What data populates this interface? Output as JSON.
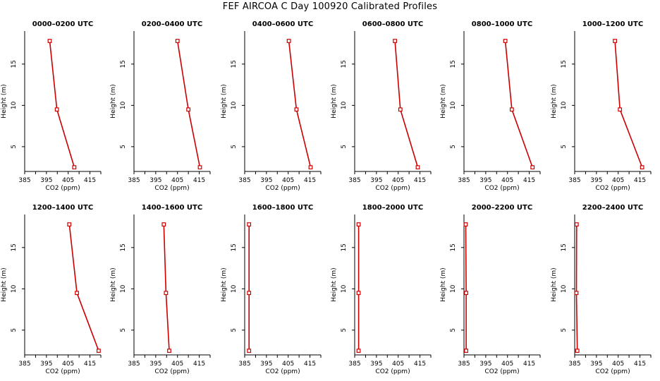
{
  "page": {
    "title": "FEF AIRCOA C  Day 100920  Calibrated Profiles"
  },
  "style": {
    "line_color": "#cc0000",
    "axis_color": "#000000",
    "background": "#ffffff"
  },
  "chart_data": [
    {
      "type": "line",
      "title": "0000–0200 UTC",
      "xlabel": "CO2 (ppm)",
      "ylabel": "Height (m)",
      "xlim": [
        385,
        420
      ],
      "ylim": [
        2,
        19
      ],
      "xticks": [
        385,
        395,
        405,
        415
      ],
      "yticks": [
        5,
        10,
        15
      ],
      "series": [
        {
          "x": [
            396.5,
            399.8,
            407.8
          ],
          "y": [
            17.8,
            9.5,
            2.5
          ]
        }
      ]
    },
    {
      "type": "line",
      "title": "0200–0400 UTC",
      "xlabel": "CO2 (ppm)",
      "ylabel": "Height (m)",
      "xlim": [
        385,
        420
      ],
      "ylim": [
        2,
        19
      ],
      "xticks": [
        385,
        395,
        405,
        415
      ],
      "yticks": [
        5,
        10,
        15
      ],
      "series": [
        {
          "x": [
            405.0,
            410.0,
            415.3
          ],
          "y": [
            17.8,
            9.5,
            2.5
          ]
        }
      ]
    },
    {
      "type": "line",
      "title": "0400–0600 UTC",
      "xlabel": "CO2 (ppm)",
      "ylabel": "Height (m)",
      "xlim": [
        385,
        420
      ],
      "ylim": [
        2,
        19
      ],
      "xticks": [
        385,
        395,
        405,
        415
      ],
      "yticks": [
        5,
        10,
        15
      ],
      "series": [
        {
          "x": [
            405.3,
            408.8,
            415.3
          ],
          "y": [
            17.8,
            9.5,
            2.5
          ]
        }
      ]
    },
    {
      "type": "line",
      "title": "0600–0800 UTC",
      "xlabel": "CO2 (ppm)",
      "ylabel": "Height (m)",
      "xlim": [
        385,
        420
      ],
      "ylim": [
        2,
        19
      ],
      "xticks": [
        385,
        395,
        405,
        415
      ],
      "yticks": [
        5,
        10,
        15
      ],
      "series": [
        {
          "x": [
            403.5,
            406.0,
            414.0
          ],
          "y": [
            17.8,
            9.5,
            2.5
          ]
        }
      ]
    },
    {
      "type": "line",
      "title": "0800–1000 UTC",
      "xlabel": "CO2 (ppm)",
      "ylabel": "Height (m)",
      "xlim": [
        385,
        420
      ],
      "ylim": [
        2,
        19
      ],
      "xticks": [
        385,
        395,
        405,
        415
      ],
      "yticks": [
        5,
        10,
        15
      ],
      "series": [
        {
          "x": [
            404.0,
            407.0,
            416.5
          ],
          "y": [
            17.8,
            9.5,
            2.5
          ]
        }
      ]
    },
    {
      "type": "line",
      "title": "1000–1200 UTC",
      "xlabel": "CO2 (ppm)",
      "ylabel": "Height (m)",
      "xlim": [
        385,
        420
      ],
      "ylim": [
        2,
        19
      ],
      "xticks": [
        385,
        395,
        405,
        415
      ],
      "yticks": [
        5,
        10,
        15
      ],
      "series": [
        {
          "x": [
            403.5,
            405.8,
            416.0
          ],
          "y": [
            17.8,
            9.5,
            2.5
          ]
        }
      ]
    },
    {
      "type": "line",
      "title": "1200–1400 UTC",
      "xlabel": "CO2 (ppm)",
      "ylabel": "Height (m)",
      "xlim": [
        385,
        420
      ],
      "ylim": [
        2,
        19
      ],
      "xticks": [
        385,
        395,
        405,
        415
      ],
      "yticks": [
        5,
        10,
        15
      ],
      "series": [
        {
          "x": [
            405.5,
            409.0,
            419.0
          ],
          "y": [
            17.8,
            9.5,
            2.5
          ]
        }
      ]
    },
    {
      "type": "line",
      "title": "1400–1600 UTC",
      "xlabel": "CO2 (ppm)",
      "ylabel": "Height (m)",
      "xlim": [
        385,
        420
      ],
      "ylim": [
        2,
        19
      ],
      "xticks": [
        385,
        395,
        405,
        415
      ],
      "yticks": [
        5,
        10,
        15
      ],
      "series": [
        {
          "x": [
            398.7,
            399.7,
            401.2
          ],
          "y": [
            17.8,
            9.5,
            2.5
          ]
        }
      ]
    },
    {
      "type": "line",
      "title": "1600–1800 UTC",
      "xlabel": "CO2 (ppm)",
      "ylabel": "Height (m)",
      "xlim": [
        385,
        420
      ],
      "ylim": [
        2,
        19
      ],
      "xticks": [
        385,
        395,
        405,
        415
      ],
      "yticks": [
        5,
        10,
        15
      ],
      "series": [
        {
          "x": [
            387.0,
            387.0,
            387.0
          ],
          "y": [
            17.8,
            9.5,
            2.5
          ]
        }
      ]
    },
    {
      "type": "line",
      "title": "1800–2000 UTC",
      "xlabel": "CO2 (ppm)",
      "ylabel": "Height (m)",
      "xlim": [
        385,
        420
      ],
      "ylim": [
        2,
        19
      ],
      "xticks": [
        385,
        395,
        405,
        415
      ],
      "yticks": [
        5,
        10,
        15
      ],
      "series": [
        {
          "x": [
            386.8,
            386.8,
            386.8
          ],
          "y": [
            17.8,
            9.5,
            2.5
          ]
        }
      ]
    },
    {
      "type": "line",
      "title": "2000–2200 UTC",
      "xlabel": "CO2 (ppm)",
      "ylabel": "Height (m)",
      "xlim": [
        385,
        420
      ],
      "ylim": [
        2,
        19
      ],
      "xticks": [
        385,
        395,
        405,
        415
      ],
      "yticks": [
        5,
        10,
        15
      ],
      "series": [
        {
          "x": [
            385.8,
            386.0,
            386.0
          ],
          "y": [
            17.8,
            9.5,
            2.5
          ]
        }
      ]
    },
    {
      "type": "line",
      "title": "2200–2400 UTC",
      "xlabel": "CO2 (ppm)",
      "ylabel": "Height (m)",
      "xlim": [
        385,
        420
      ],
      "ylim": [
        2,
        19
      ],
      "xticks": [
        385,
        395,
        405,
        415
      ],
      "yticks": [
        5,
        10,
        15
      ],
      "series": [
        {
          "x": [
            385.9,
            385.8,
            386.2
          ],
          "y": [
            17.8,
            9.5,
            2.5
          ]
        }
      ]
    }
  ]
}
